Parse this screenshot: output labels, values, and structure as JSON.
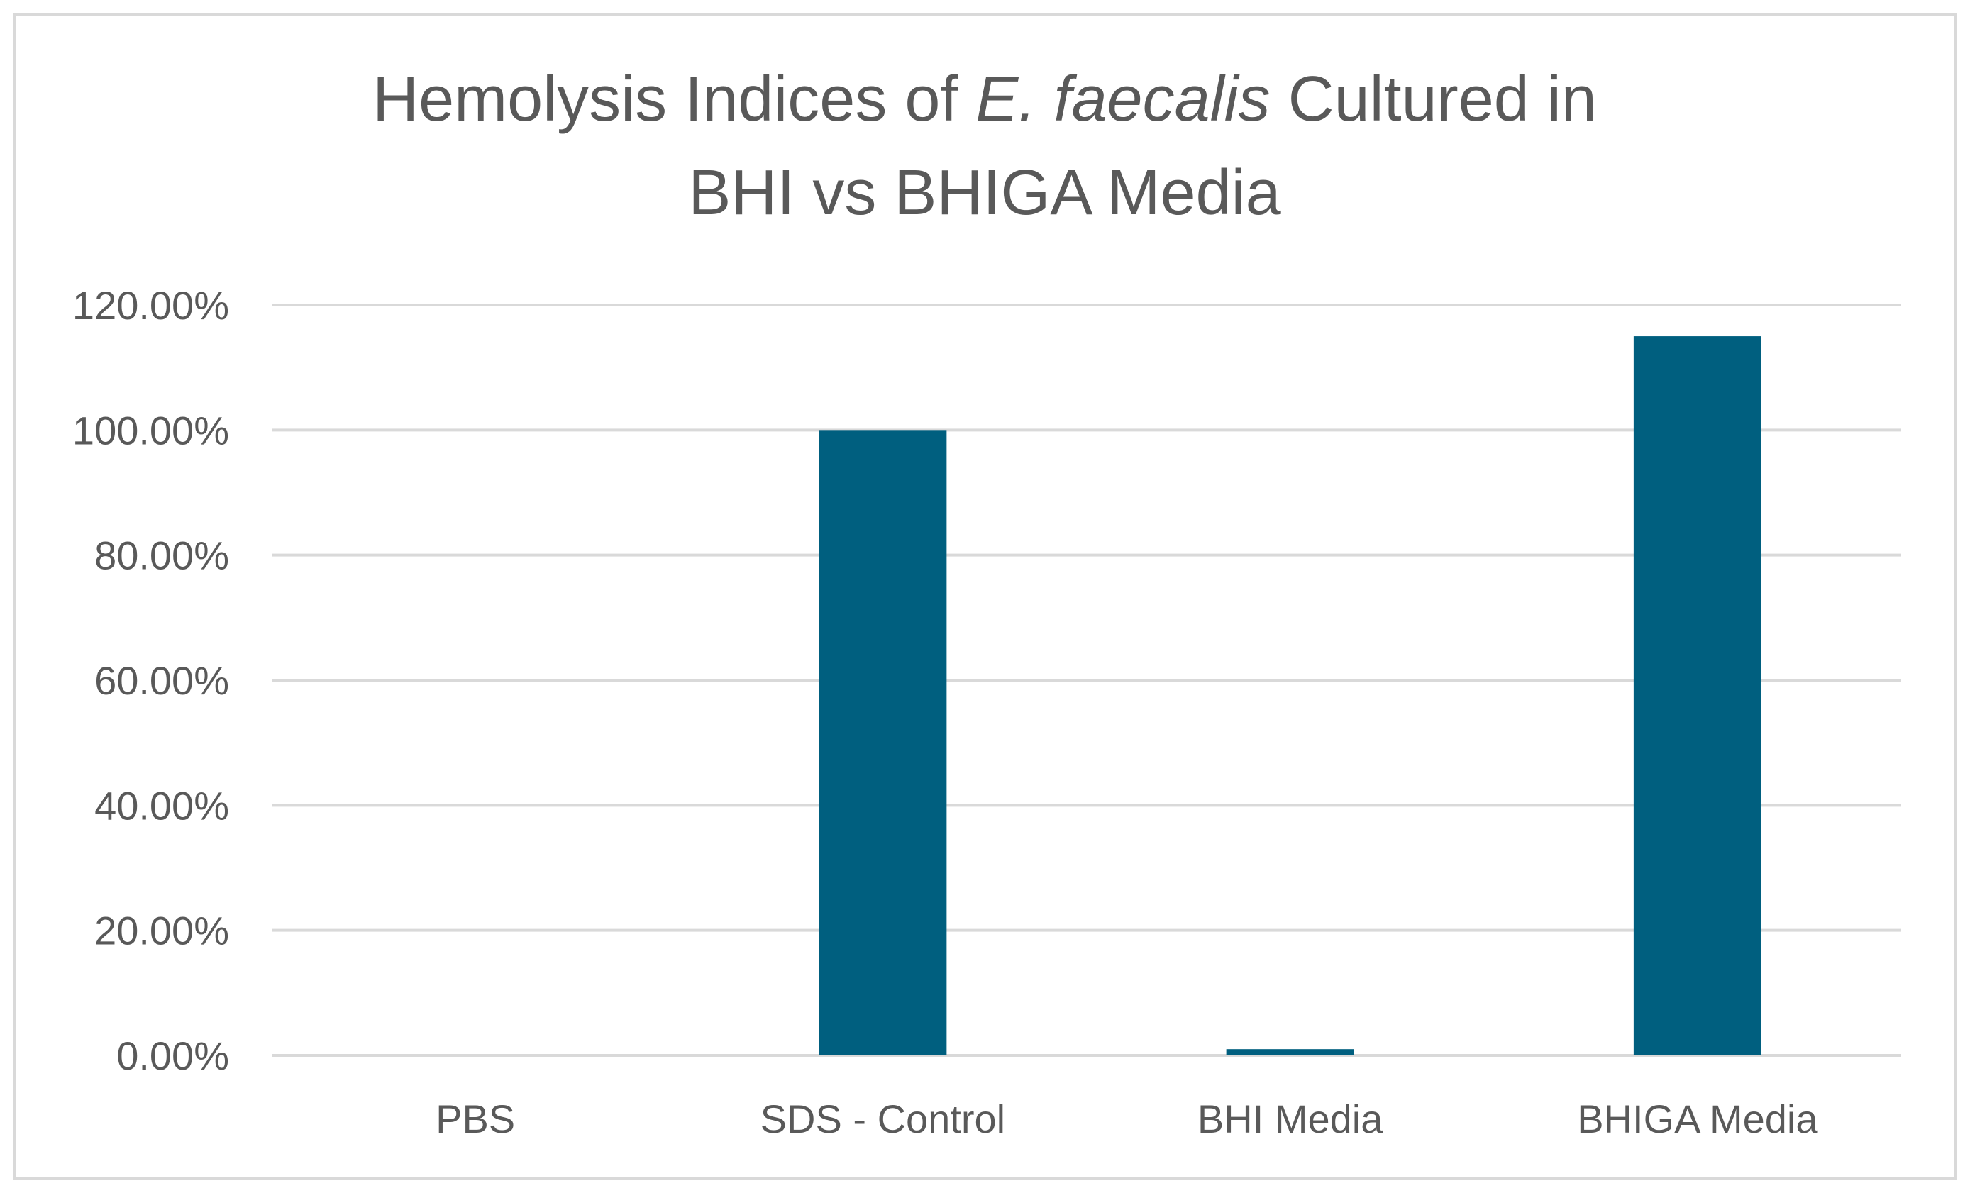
{
  "chart_data": {
    "type": "bar",
    "title": {
      "line1_pre": "Hemolysis Indices of ",
      "line1_italic": "E. faecalis",
      "line1_post": " Cultured in",
      "line2": "BHI vs BHIGA Media"
    },
    "categories": [
      "PBS",
      "SDS - Control",
      "BHI Media",
      "BHIGA Media"
    ],
    "series": [
      {
        "values": [
          0.0,
          100.0,
          1.0,
          115.0
        ]
      }
    ],
    "y_ticks": [
      "0.00%",
      "20.00%",
      "40.00%",
      "60.00%",
      "80.00%",
      "100.00%",
      "120.00%"
    ],
    "ylim": [
      0,
      120
    ],
    "grid": true,
    "legend": "none",
    "bar_color": "#005f7f"
  }
}
